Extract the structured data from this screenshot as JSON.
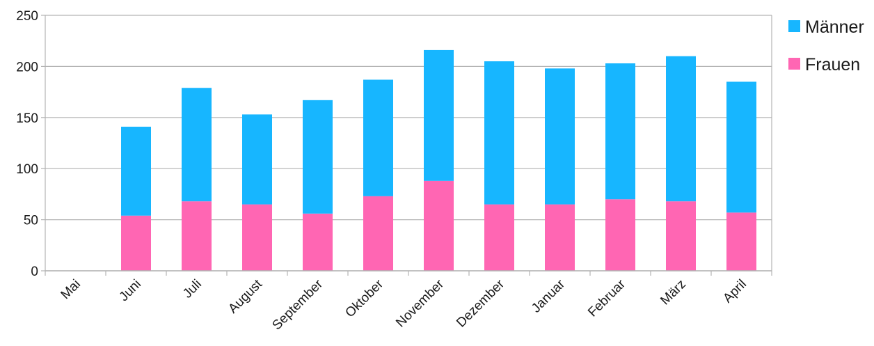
{
  "chart_data": {
    "type": "bar",
    "stacked": true,
    "categories": [
      "Mai",
      "Juni",
      "Juli",
      "August",
      "September",
      "Oktober",
      "November",
      "Dezember",
      "Januar",
      "Februar",
      "März",
      "April"
    ],
    "series": [
      {
        "name": "Frauen",
        "color": "#ff66b3",
        "values": [
          0,
          54,
          68,
          65,
          56,
          73,
          88,
          65,
          65,
          70,
          68,
          57
        ]
      },
      {
        "name": "Männer",
        "color": "#17b6ff",
        "values": [
          0,
          87,
          111,
          88,
          111,
          114,
          128,
          140,
          133,
          133,
          142,
          128
        ]
      }
    ],
    "legend_order": [
      "Männer",
      "Frauen"
    ],
    "ylim": [
      0,
      250
    ],
    "yticks": [
      0,
      50,
      100,
      150,
      200,
      250
    ],
    "grid": true,
    "legend_position": "top-right",
    "title": "",
    "xlabel": "",
    "ylabel": ""
  }
}
